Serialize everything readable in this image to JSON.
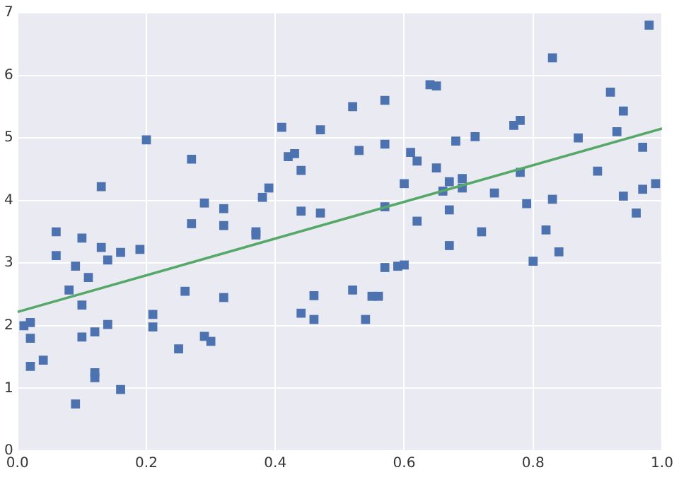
{
  "chart_data": {
    "type": "scatter",
    "grid": true,
    "xlim": [
      0,
      1
    ],
    "ylim": [
      0,
      7
    ],
    "xticks": [
      {
        "value": 0,
        "label": "0.0"
      },
      {
        "value": 0.2,
        "label": "0.2"
      },
      {
        "value": 0.4,
        "label": "0.4"
      },
      {
        "value": 0.6,
        "label": "0.6"
      },
      {
        "value": 0.8,
        "label": "0.8"
      },
      {
        "value": 1,
        "label": "1.0"
      }
    ],
    "yticks": [
      0,
      1,
      2,
      3,
      4,
      5,
      6,
      7
    ],
    "series": [
      {
        "marker": "square",
        "color": "#4c72b0",
        "x": [
          0.01,
          0.02,
          0.02,
          0.02,
          0.04,
          0.06,
          0.06,
          0.08,
          0.09,
          0.1,
          0.1,
          0.09,
          0.1,
          0.11,
          0.12,
          0.12,
          0.12,
          0.13,
          0.13,
          0.14,
          0.14,
          0.16,
          0.16,
          0.19,
          0.2,
          0.21,
          0.21,
          0.25,
          0.26,
          0.27,
          0.27,
          0.29,
          0.29,
          0.3,
          0.32,
          0.32,
          0.32,
          0.37,
          0.37,
          0.38,
          0.39,
          0.41,
          0.42,
          0.43,
          0.44,
          0.44,
          0.44,
          0.46,
          0.46,
          0.47,
          0.47,
          0.52,
          0.53,
          0.52,
          0.54,
          0.55,
          0.56,
          0.57,
          0.57,
          0.57,
          0.57,
          0.59,
          0.6,
          0.6,
          0.61,
          0.62,
          0.62,
          0.64,
          0.65,
          0.65,
          0.66,
          0.67,
          0.67,
          0.67,
          0.68,
          0.69,
          0.69,
          0.71,
          0.72,
          0.74,
          0.77,
          0.78,
          0.78,
          0.79,
          0.8,
          0.82,
          0.83,
          0.83,
          0.84,
          0.87,
          0.9,
          0.92,
          0.93,
          0.94,
          0.94,
          0.96,
          0.97,
          0.97,
          0.98,
          0.99
        ],
        "values": [
          2.0,
          2.05,
          1.8,
          1.35,
          1.45,
          3.5,
          3.12,
          2.57,
          2.95,
          3.4,
          1.82,
          0.75,
          2.33,
          2.77,
          1.9,
          1.25,
          1.17,
          4.22,
          3.25,
          3.05,
          2.02,
          0.98,
          3.17,
          3.22,
          4.97,
          2.18,
          1.98,
          1.63,
          2.55,
          4.66,
          3.63,
          3.96,
          1.83,
          1.75,
          3.6,
          2.45,
          3.87,
          3.45,
          3.5,
          4.05,
          4.2,
          5.17,
          4.7,
          4.75,
          4.48,
          3.83,
          2.2,
          2.48,
          2.1,
          5.13,
          3.8,
          5.5,
          4.8,
          2.57,
          2.1,
          2.47,
          2.47,
          5.6,
          4.9,
          3.9,
          2.93,
          2.95,
          2.97,
          4.27,
          4.77,
          4.63,
          3.67,
          5.85,
          5.83,
          4.52,
          4.15,
          4.3,
          3.28,
          3.85,
          4.95,
          4.35,
          4.2,
          5.02,
          3.5,
          4.12,
          5.2,
          5.28,
          4.45,
          3.95,
          3.03,
          3.53,
          4.02,
          6.28,
          3.18,
          5.0,
          4.47,
          5.73,
          5.1,
          5.43,
          4.07,
          3.8,
          4.18,
          4.85,
          6.8,
          4.27
        ]
      },
      {
        "type": "line",
        "color": "#55a868",
        "x": [
          0,
          1
        ],
        "values": [
          2.22,
          5.15
        ]
      }
    ]
  }
}
